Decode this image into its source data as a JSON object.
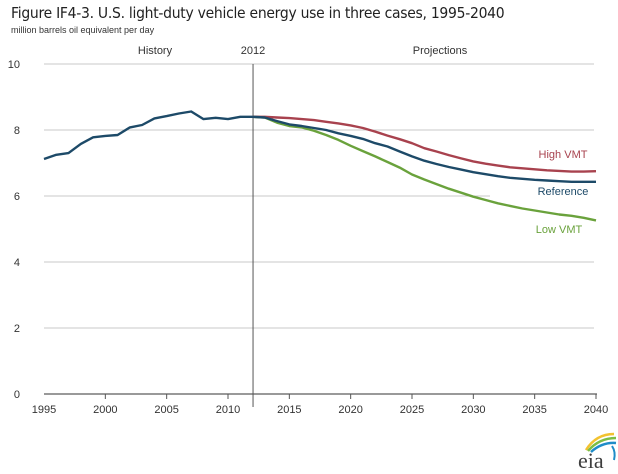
{
  "chart_data": {
    "type": "line",
    "title": "Figure IF4-3. U.S. light-duty vehicle energy use in three cases, 1995-2040",
    "subtitle": "million barrels oil equivalent  per day",
    "xlabel": "",
    "ylabel": "million barrels oil equivalent per day",
    "xlim": [
      1995,
      2040
    ],
    "ylim": [
      0,
      10
    ],
    "x_ticks": [
      "1995",
      "2000",
      "2005",
      "2010",
      "2015",
      "2020",
      "2025",
      "2030",
      "2035",
      "2040"
    ],
    "y_ticks": [
      "0",
      "2",
      "4",
      "6",
      "8",
      "10"
    ],
    "grid": "horizontal",
    "annotations": {
      "history_label": "History",
      "projections_label": "Projections",
      "divider_label": "2012",
      "divider_year": 2012
    },
    "series": [
      {
        "name": "History",
        "color": "#1d4a68",
        "x": [
          1995,
          1996,
          1997,
          1998,
          1999,
          2000,
          2001,
          2002,
          2003,
          2004,
          2005,
          2006,
          2007,
          2008,
          2009,
          2010,
          2011,
          2012
        ],
        "values": [
          7.12,
          7.25,
          7.3,
          7.58,
          7.78,
          7.82,
          7.85,
          8.08,
          8.15,
          8.35,
          8.42,
          8.5,
          8.56,
          8.33,
          8.37,
          8.33,
          8.4,
          8.4
        ]
      },
      {
        "name": "High VMT",
        "color": "#a8424e",
        "x": [
          2012,
          2013,
          2014,
          2015,
          2016,
          2017,
          2018,
          2019,
          2020,
          2021,
          2022,
          2023,
          2024,
          2025,
          2026,
          2027,
          2028,
          2029,
          2030,
          2031,
          2032,
          2033,
          2034,
          2035,
          2036,
          2037,
          2038,
          2039,
          2040
        ],
        "values": [
          8.4,
          8.4,
          8.38,
          8.36,
          8.33,
          8.3,
          8.25,
          8.2,
          8.14,
          8.06,
          7.95,
          7.83,
          7.72,
          7.6,
          7.45,
          7.35,
          7.24,
          7.14,
          7.05,
          6.98,
          6.92,
          6.87,
          6.84,
          6.81,
          6.78,
          6.76,
          6.74,
          6.74,
          6.75
        ]
      },
      {
        "name": "Reference",
        "color": "#1d4a68",
        "x": [
          2012,
          2013,
          2014,
          2015,
          2016,
          2017,
          2018,
          2019,
          2020,
          2021,
          2022,
          2023,
          2024,
          2025,
          2026,
          2027,
          2028,
          2029,
          2030,
          2031,
          2032,
          2033,
          2034,
          2035,
          2036,
          2037,
          2038,
          2039,
          2040
        ],
        "values": [
          8.4,
          8.38,
          8.27,
          8.17,
          8.12,
          8.06,
          8.0,
          7.9,
          7.82,
          7.73,
          7.6,
          7.5,
          7.35,
          7.2,
          7.07,
          6.97,
          6.88,
          6.8,
          6.72,
          6.66,
          6.6,
          6.55,
          6.52,
          6.49,
          6.47,
          6.45,
          6.43,
          6.43,
          6.43
        ]
      },
      {
        "name": "Low VMT",
        "color": "#6aa23c",
        "x": [
          2012,
          2013,
          2014,
          2015,
          2016,
          2017,
          2018,
          2019,
          2020,
          2021,
          2022,
          2023,
          2024,
          2025,
          2026,
          2027,
          2028,
          2029,
          2030,
          2031,
          2032,
          2033,
          2034,
          2035,
          2036,
          2037,
          2038,
          2039,
          2040
        ],
        "values": [
          8.4,
          8.38,
          8.22,
          8.12,
          8.08,
          7.98,
          7.85,
          7.7,
          7.52,
          7.36,
          7.2,
          7.03,
          6.86,
          6.65,
          6.5,
          6.36,
          6.22,
          6.1,
          5.98,
          5.88,
          5.78,
          5.7,
          5.62,
          5.56,
          5.5,
          5.44,
          5.4,
          5.34,
          5.26
        ]
      }
    ]
  },
  "logo": {
    "text": "eia",
    "icon": "eia-logo"
  }
}
